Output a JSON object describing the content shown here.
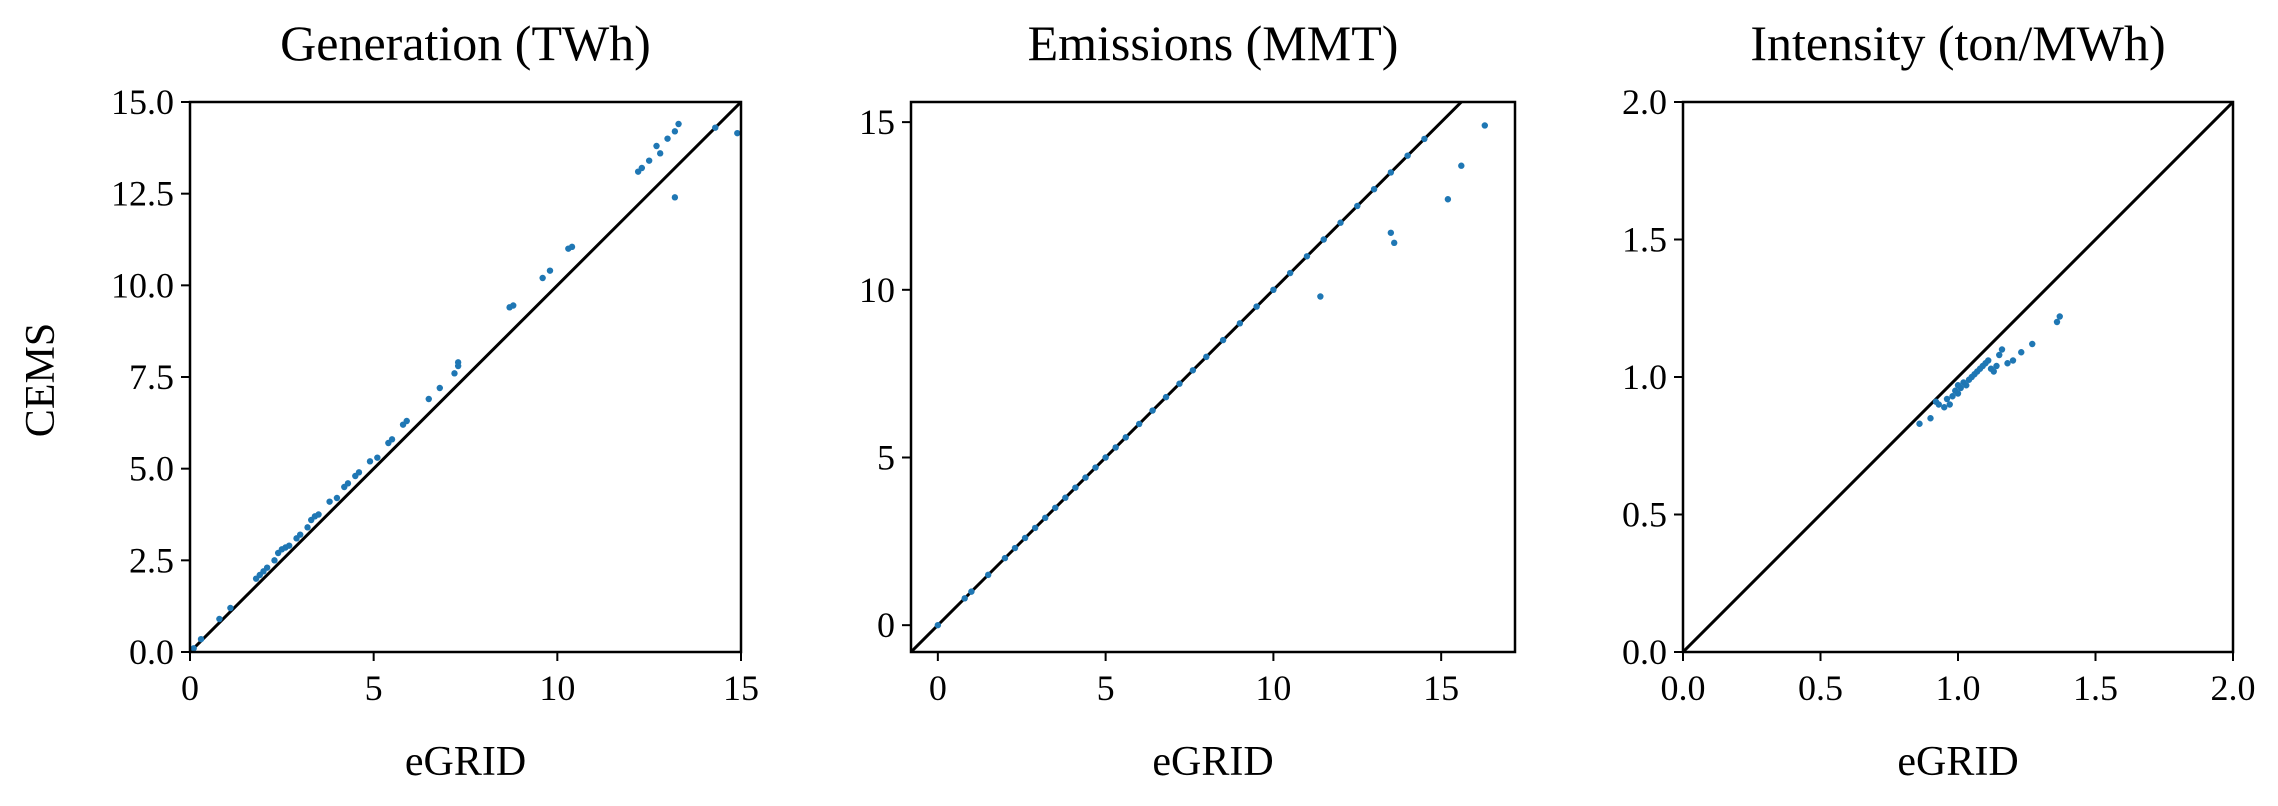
{
  "figure": {
    "shared_ylabel": "CEMS"
  },
  "chart_data": [
    {
      "type": "scatter",
      "title": "Generation (TWh)",
      "xlabel": "eGRID",
      "ylabel": "CEMS",
      "xlim": [
        0,
        15
      ],
      "ylim": [
        0,
        15
      ],
      "xticks": [
        0,
        5,
        10,
        15
      ],
      "xtick_labels": [
        "0",
        "5",
        "10",
        "15"
      ],
      "yticks": [
        0,
        2.5,
        5,
        7.5,
        10,
        12.5,
        15
      ],
      "ytick_labels": [
        "0.0",
        "2.5",
        "5.0",
        "7.5",
        "10.0",
        "12.5",
        "15.0"
      ],
      "reference_line": "y = x",
      "grid": false,
      "marker_color": "#1f77b4",
      "points": [
        [
          0.1,
          0.1
        ],
        [
          0.3,
          0.35
        ],
        [
          0.8,
          0.9
        ],
        [
          1.1,
          1.2
        ],
        [
          1.8,
          2.0
        ],
        [
          1.9,
          2.1
        ],
        [
          2.0,
          2.2
        ],
        [
          2.1,
          2.3
        ],
        [
          2.3,
          2.5
        ],
        [
          2.4,
          2.7
        ],
        [
          2.5,
          2.8
        ],
        [
          2.6,
          2.85
        ],
        [
          2.7,
          2.9
        ],
        [
          2.9,
          3.1
        ],
        [
          3.0,
          3.2
        ],
        [
          3.2,
          3.4
        ],
        [
          3.3,
          3.6
        ],
        [
          3.4,
          3.7
        ],
        [
          3.5,
          3.75
        ],
        [
          3.8,
          4.1
        ],
        [
          4.0,
          4.2
        ],
        [
          4.2,
          4.5
        ],
        [
          4.3,
          4.6
        ],
        [
          4.5,
          4.8
        ],
        [
          4.6,
          4.9
        ],
        [
          4.9,
          5.2
        ],
        [
          5.1,
          5.3
        ],
        [
          5.4,
          5.7
        ],
        [
          5.5,
          5.8
        ],
        [
          5.8,
          6.2
        ],
        [
          5.9,
          6.3
        ],
        [
          6.5,
          6.9
        ],
        [
          6.8,
          7.2
        ],
        [
          7.2,
          7.6
        ],
        [
          7.3,
          7.8
        ],
        [
          7.3,
          7.9
        ],
        [
          8.7,
          9.4
        ],
        [
          8.8,
          9.45
        ],
        [
          9.6,
          10.2
        ],
        [
          9.8,
          10.4
        ],
        [
          10.3,
          11.0
        ],
        [
          10.4,
          11.05
        ],
        [
          12.2,
          13.1
        ],
        [
          12.3,
          13.2
        ],
        [
          12.5,
          13.4
        ],
        [
          12.7,
          13.8
        ],
        [
          12.8,
          13.6
        ],
        [
          13.0,
          14.0
        ],
        [
          13.2,
          14.2
        ],
        [
          13.3,
          14.4
        ],
        [
          13.2,
          12.4
        ],
        [
          14.3,
          14.3
        ],
        [
          14.9,
          14.15
        ]
      ]
    },
    {
      "type": "scatter",
      "title": "Emissions (MMT)",
      "xlabel": "eGRID",
      "ylabel": "",
      "xlim": [
        -0.8,
        17.2
      ],
      "ylim": [
        -0.8,
        15.6
      ],
      "xticks": [
        0,
        5,
        10,
        15
      ],
      "xtick_labels": [
        "0",
        "5",
        "10",
        "15"
      ],
      "yticks": [
        0,
        5,
        10,
        15
      ],
      "ytick_labels": [
        "0",
        "5",
        "10",
        "15"
      ],
      "reference_line": "y = x",
      "grid": false,
      "marker_color": "#1f77b4",
      "points": [
        [
          0.0,
          0.0
        ],
        [
          0.8,
          0.8
        ],
        [
          1.0,
          1.0
        ],
        [
          1.5,
          1.5
        ],
        [
          2.0,
          2.0
        ],
        [
          2.3,
          2.3
        ],
        [
          2.6,
          2.6
        ],
        [
          2.9,
          2.9
        ],
        [
          3.2,
          3.2
        ],
        [
          3.5,
          3.5
        ],
        [
          3.8,
          3.8
        ],
        [
          4.1,
          4.1
        ],
        [
          4.4,
          4.4
        ],
        [
          4.7,
          4.7
        ],
        [
          5.0,
          5.0
        ],
        [
          5.3,
          5.3
        ],
        [
          5.6,
          5.6
        ],
        [
          6.0,
          6.0
        ],
        [
          6.4,
          6.4
        ],
        [
          6.8,
          6.8
        ],
        [
          7.2,
          7.2
        ],
        [
          7.6,
          7.6
        ],
        [
          8.0,
          8.0
        ],
        [
          8.5,
          8.5
        ],
        [
          9.0,
          9.0
        ],
        [
          9.5,
          9.5
        ],
        [
          10.0,
          10.0
        ],
        [
          10.5,
          10.5
        ],
        [
          11.0,
          11.0
        ],
        [
          11.5,
          11.5
        ],
        [
          12.0,
          12.0
        ],
        [
          12.5,
          12.5
        ],
        [
          13.0,
          13.0
        ],
        [
          13.5,
          13.5
        ],
        [
          14.0,
          14.0
        ],
        [
          14.5,
          14.5
        ],
        [
          11.4,
          9.8
        ],
        [
          13.5,
          11.7
        ],
        [
          13.6,
          11.4
        ],
        [
          15.2,
          12.7
        ],
        [
          15.6,
          13.7
        ],
        [
          16.3,
          14.9
        ]
      ]
    },
    {
      "type": "scatter",
      "title": "Intensity (ton/MWh)",
      "xlabel": "eGRID",
      "ylabel": "",
      "xlim": [
        0,
        2
      ],
      "ylim": [
        0,
        2
      ],
      "xticks": [
        0,
        0.5,
        1,
        1.5,
        2
      ],
      "xtick_labels": [
        "0.0",
        "0.5",
        "1.0",
        "1.5",
        "2.0"
      ],
      "yticks": [
        0,
        0.5,
        1,
        1.5,
        2
      ],
      "ytick_labels": [
        "0.0",
        "0.5",
        "1.0",
        "1.5",
        "2.0"
      ],
      "reference_line": "y = x",
      "grid": false,
      "marker_color": "#1f77b4",
      "points": [
        [
          0.86,
          0.83
        ],
        [
          0.9,
          0.85
        ],
        [
          0.92,
          0.91
        ],
        [
          0.93,
          0.9
        ],
        [
          0.95,
          0.89
        ],
        [
          0.96,
          0.92
        ],
        [
          0.97,
          0.9
        ],
        [
          0.98,
          0.93
        ],
        [
          0.99,
          0.95
        ],
        [
          1.0,
          0.94
        ],
        [
          1.0,
          0.97
        ],
        [
          1.01,
          0.96
        ],
        [
          1.02,
          0.98
        ],
        [
          1.03,
          0.97
        ],
        [
          1.04,
          0.99
        ],
        [
          1.05,
          1.0
        ],
        [
          1.06,
          1.01
        ],
        [
          1.07,
          1.02
        ],
        [
          1.08,
          1.03
        ],
        [
          1.09,
          1.04
        ],
        [
          1.1,
          1.05
        ],
        [
          1.11,
          1.06
        ],
        [
          1.12,
          1.03
        ],
        [
          1.13,
          1.02
        ],
        [
          1.14,
          1.04
        ],
        [
          1.15,
          1.08
        ],
        [
          1.16,
          1.1
        ],
        [
          1.18,
          1.05
        ],
        [
          1.2,
          1.06
        ],
        [
          1.23,
          1.09
        ],
        [
          1.27,
          1.12
        ],
        [
          1.36,
          1.2
        ],
        [
          1.37,
          1.22
        ]
      ]
    }
  ]
}
